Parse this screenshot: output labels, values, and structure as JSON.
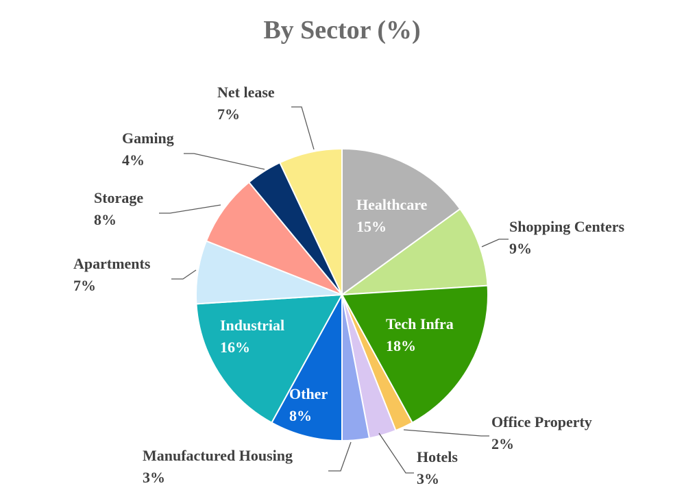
{
  "chart_data": {
    "type": "pie",
    "title": "By Sector (%)",
    "legend": "none",
    "slices": [
      {
        "label": "Healthcare",
        "value": 15,
        "display": "15%",
        "color": "#b3b3b3",
        "label_inside": true,
        "text_color": "#ffffff"
      },
      {
        "label": "Shopping Centers",
        "value": 9,
        "display": "9%",
        "color": "#c2e58b",
        "label_inside": false,
        "text_color": "#404040"
      },
      {
        "label": "Tech Infra",
        "value": 18,
        "display": "18%",
        "color": "#349a03",
        "label_inside": true,
        "text_color": "#ffffff"
      },
      {
        "label": "Office Property",
        "value": 2,
        "display": "2%",
        "color": "#f8c55a",
        "label_inside": false,
        "text_color": "#404040"
      },
      {
        "label": "Hotels",
        "value": 3,
        "display": "3%",
        "color": "#d9c6f2",
        "label_inside": false,
        "text_color": "#404040"
      },
      {
        "label": "Manufactured Housing",
        "value": 3,
        "display": "3%",
        "color": "#92a8f0",
        "label_inside": false,
        "text_color": "#404040"
      },
      {
        "label": "Other",
        "value": 8,
        "display": "8%",
        "color": "#0a6ad8",
        "label_inside": true,
        "text_color": "#ffffff"
      },
      {
        "label": "Industrial",
        "value": 16,
        "display": "16%",
        "color": "#16b2b8",
        "label_inside": true,
        "text_color": "#ffffff"
      },
      {
        "label": "Apartments",
        "value": 7,
        "display": "7%",
        "color": "#cdeafa",
        "label_inside": false,
        "text_color": "#404040"
      },
      {
        "label": "Storage",
        "value": 8,
        "display": "8%",
        "color": "#fe998c",
        "label_inside": false,
        "text_color": "#404040"
      },
      {
        "label": "Gaming",
        "value": 4,
        "display": "4%",
        "color": "#06326e",
        "label_inside": false,
        "text_color": "#404040"
      },
      {
        "label": "Net lease",
        "value": 7,
        "display": "7%",
        "color": "#fbeb87",
        "label_inside": false,
        "text_color": "#404040"
      }
    ]
  }
}
